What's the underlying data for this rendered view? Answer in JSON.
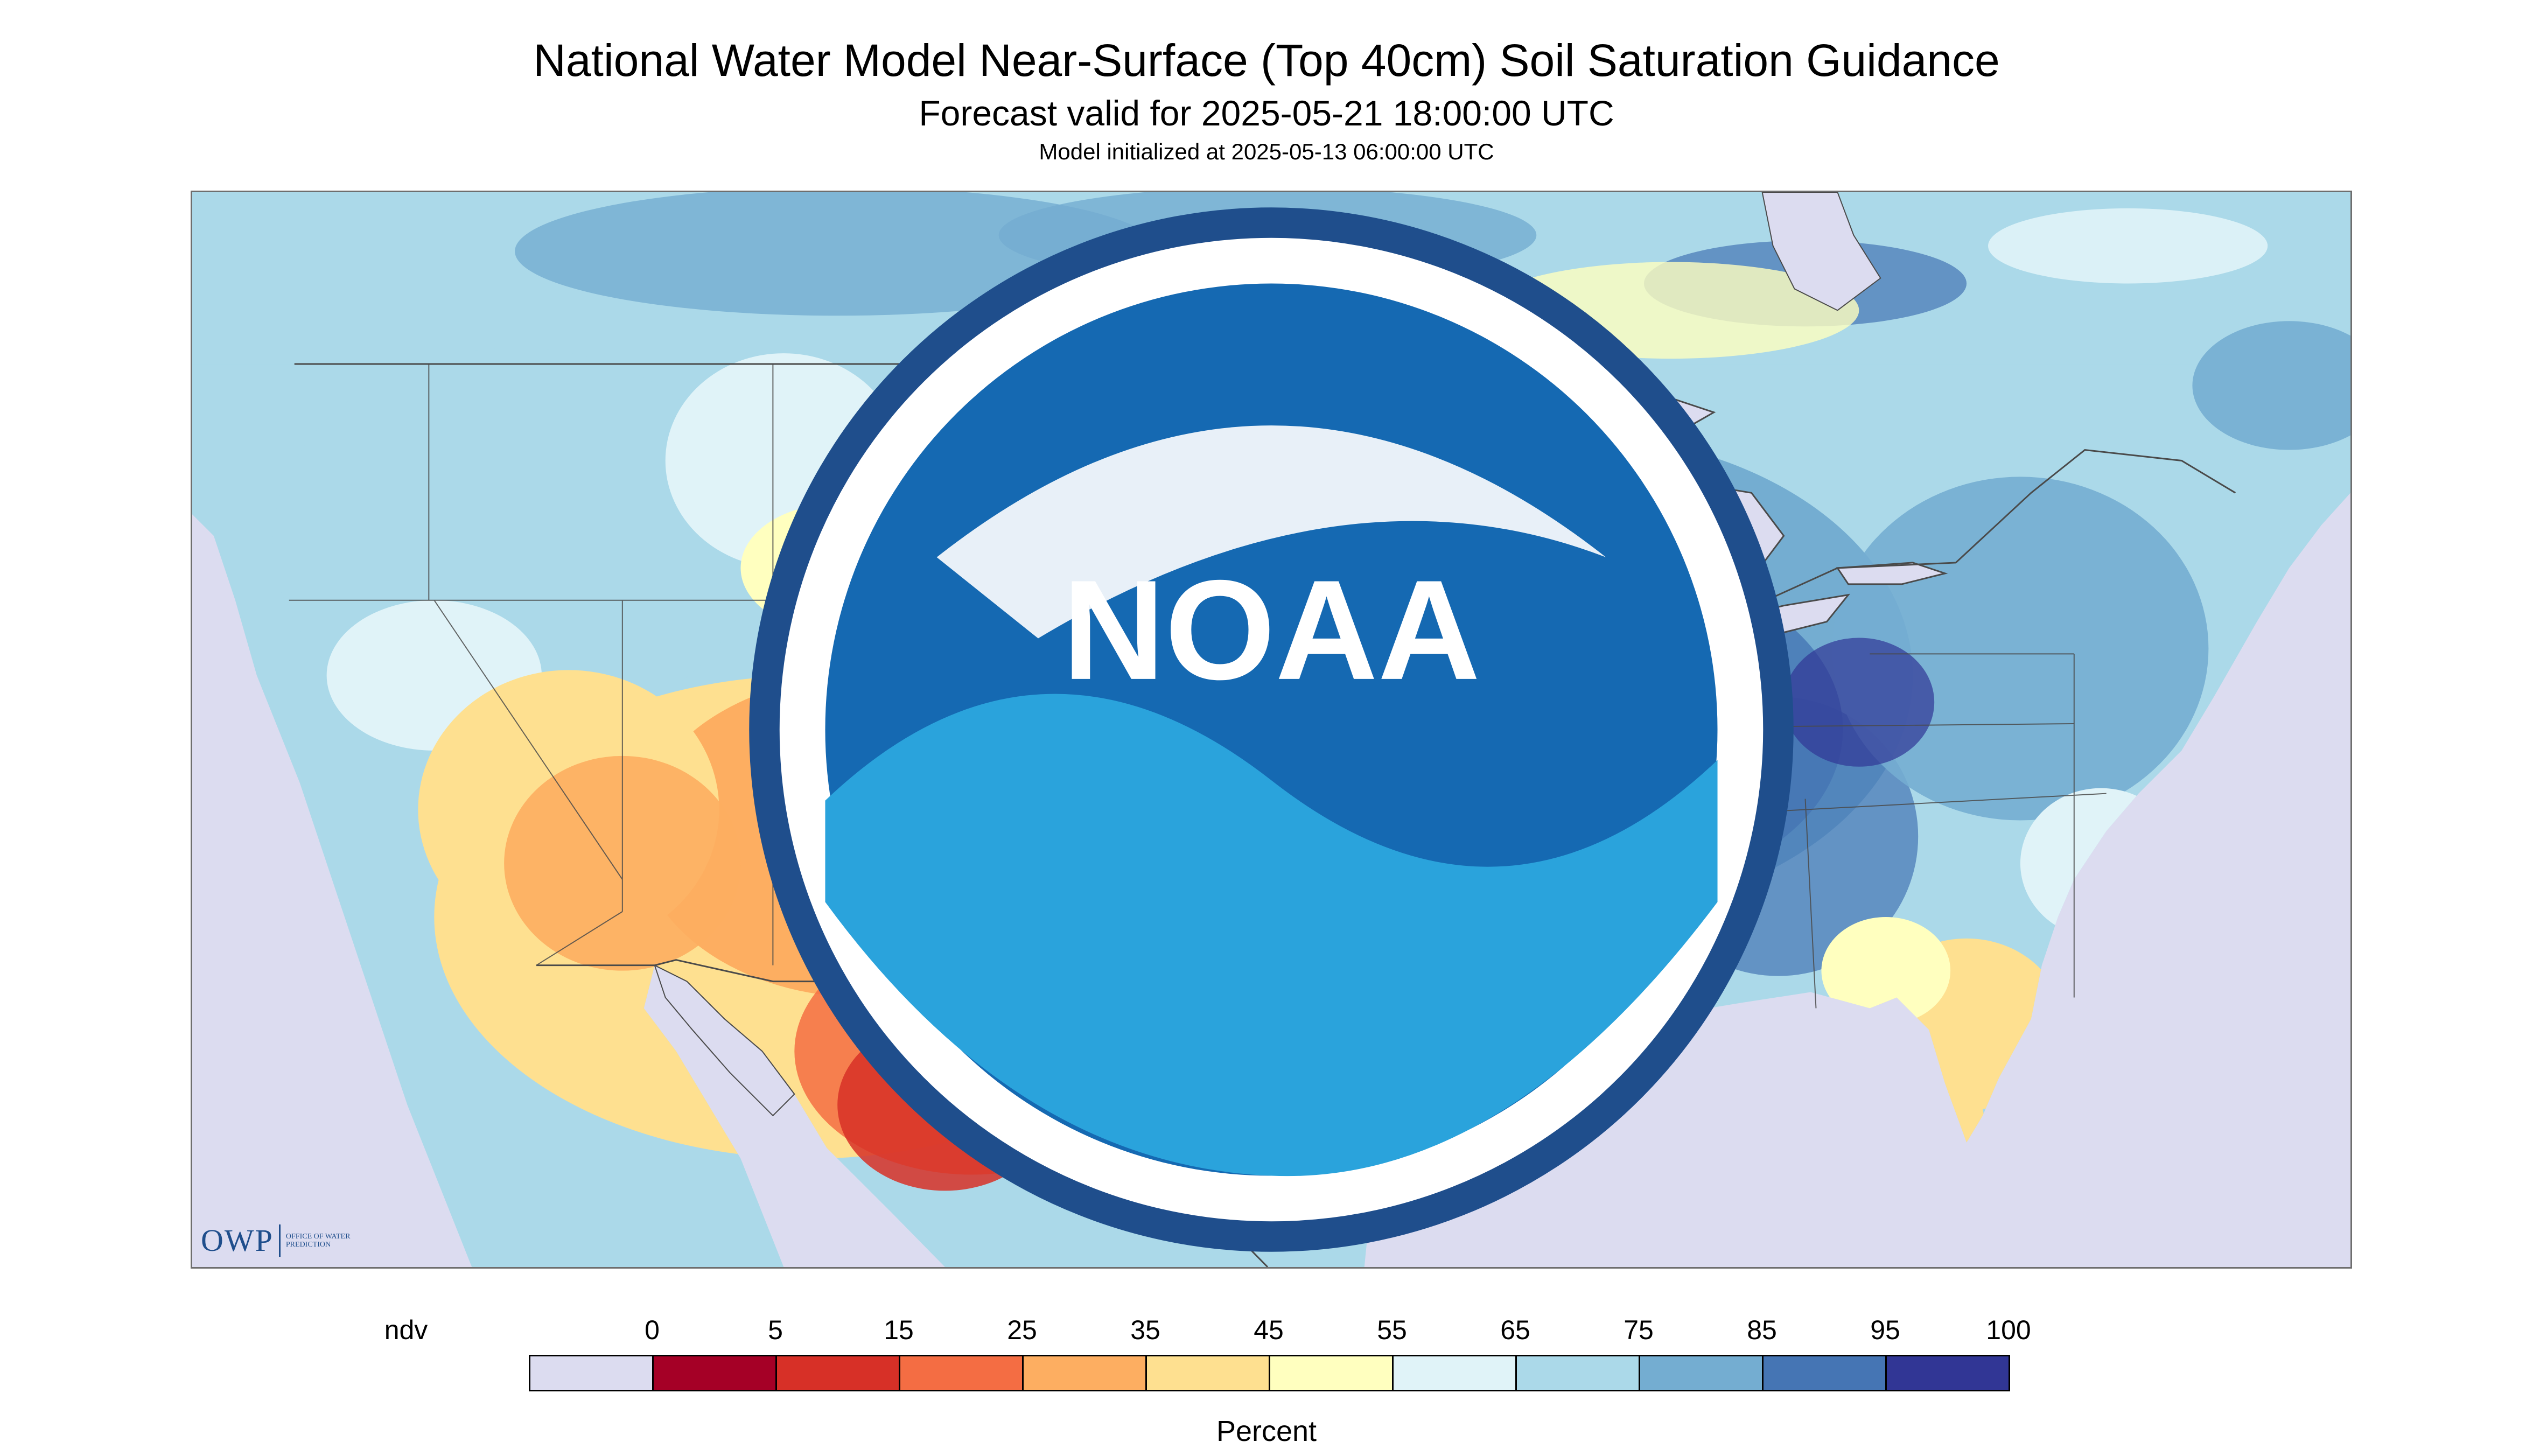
{
  "header": {
    "title": "National Water Model Near-Surface (Top 40cm) Soil Saturation Guidance",
    "subtitle": "Forecast valid for 2025-05-21 18:00:00 UTC",
    "init_line": "Model initialized at 2025-05-13 06:00:00 UTC"
  },
  "logos": {
    "owp_mark": "OWP",
    "owp_sub": "OFFICE OF WATER PREDICTION",
    "noaa_mark": "NOAA"
  },
  "legend": {
    "unit_label": "Percent",
    "ticks": [
      "ndv",
      "0",
      "5",
      "15",
      "25",
      "35",
      "45",
      "55",
      "65",
      "75",
      "85",
      "95",
      "100"
    ],
    "bins": [
      {
        "label": "ndv",
        "color": "#dcdcf0"
      },
      {
        "label": "0-5",
        "color": "#a50026"
      },
      {
        "label": "5-15",
        "color": "#d73027"
      },
      {
        "label": "15-25",
        "color": "#f46d43"
      },
      {
        "label": "25-35",
        "color": "#fdae61"
      },
      {
        "label": "35-45",
        "color": "#fee090"
      },
      {
        "label": "45-55",
        "color": "#ffffbf"
      },
      {
        "label": "55-65",
        "color": "#e0f3f8"
      },
      {
        "label": "65-75",
        "color": "#abd9e9"
      },
      {
        "label": "75-85",
        "color": "#74add1"
      },
      {
        "label": "85-95",
        "color": "#4575b4"
      },
      {
        "label": "95-100",
        "color": "#313695"
      }
    ]
  },
  "map": {
    "nodata_color": "#dcdcf0",
    "water_color": "#dcdcf0",
    "border_color": "#4a4a4a"
  }
}
